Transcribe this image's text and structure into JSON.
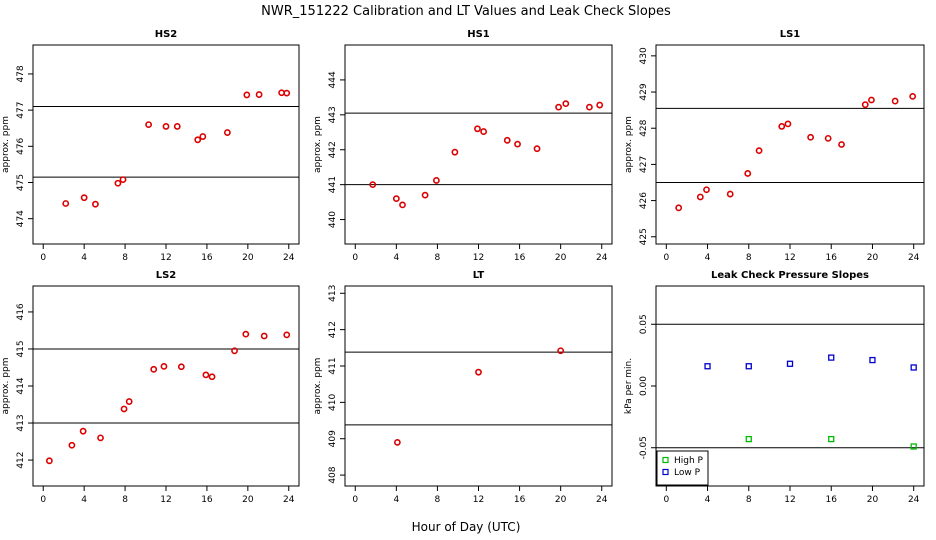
{
  "figure": {
    "title": "NWR_151222  Calibration and LT Values and Leak Check Slopes",
    "xlabel": "Hour of Day (UTC)"
  },
  "chart_data": [
    {
      "type": "scatter",
      "title": "HS2",
      "ylabel": "approx. ppm",
      "xlim": [
        -1,
        25
      ],
      "ylim": [
        473.3,
        478.8
      ],
      "xticks": [
        0,
        4,
        8,
        12,
        16,
        20,
        24
      ],
      "yticks": [
        474,
        475,
        476,
        477,
        478
      ],
      "hlines": [
        475.15,
        477.1
      ],
      "series": [
        {
          "color": "#dd0000",
          "x": [
            2.2,
            4.0,
            5.1,
            7.3,
            7.8,
            10.3,
            12.0,
            13.1,
            15.1,
            15.6,
            18.0,
            19.9,
            21.1,
            23.3,
            23.8
          ],
          "y": [
            474.42,
            474.58,
            474.4,
            474.98,
            475.08,
            476.6,
            476.55,
            476.55,
            476.18,
            476.27,
            476.38,
            477.42,
            477.43,
            477.48,
            477.47
          ]
        }
      ]
    },
    {
      "type": "scatter",
      "title": "HS1",
      "ylabel": "approx. ppm",
      "xlim": [
        -1,
        25
      ],
      "ylim": [
        439.3,
        445.0
      ],
      "xticks": [
        0,
        4,
        8,
        12,
        16,
        20,
        24
      ],
      "yticks": [
        440,
        441,
        442,
        443,
        444
      ],
      "hlines": [
        441.0,
        443.05
      ],
      "series": [
        {
          "color": "#dd0000",
          "x": [
            1.7,
            4.0,
            4.6,
            6.8,
            7.9,
            9.7,
            11.9,
            12.5,
            14.8,
            15.8,
            17.7,
            19.8,
            20.5,
            22.8,
            23.8
          ],
          "y": [
            441.0,
            440.6,
            440.42,
            440.7,
            441.12,
            441.93,
            442.6,
            442.52,
            442.27,
            442.16,
            442.03,
            443.22,
            443.32,
            443.22,
            443.28
          ]
        }
      ]
    },
    {
      "type": "scatter",
      "title": "LS1",
      "ylabel": "approx. ppm",
      "xlim": [
        -1,
        25
      ],
      "ylim": [
        424.8,
        430.3
      ],
      "xticks": [
        0,
        4,
        8,
        12,
        16,
        20,
        24
      ],
      "yticks": [
        425,
        426,
        427,
        428,
        429,
        430
      ],
      "hlines": [
        426.5,
        428.55
      ],
      "series": [
        {
          "color": "#dd0000",
          "x": [
            1.2,
            3.3,
            3.9,
            6.2,
            7.9,
            9.0,
            11.2,
            11.8,
            14.0,
            15.7,
            17.0,
            19.3,
            19.9,
            22.2,
            23.9
          ],
          "y": [
            425.8,
            426.1,
            426.3,
            426.18,
            426.75,
            427.38,
            428.05,
            428.12,
            427.75,
            427.72,
            427.55,
            428.65,
            428.78,
            428.75,
            428.88
          ]
        }
      ]
    },
    {
      "type": "scatter",
      "title": "LS2",
      "ylabel": "approx. ppm",
      "xlim": [
        -1,
        25
      ],
      "ylim": [
        411.3,
        416.7
      ],
      "xticks": [
        0,
        4,
        8,
        12,
        16,
        20,
        24
      ],
      "yticks": [
        412,
        413,
        414,
        415,
        416
      ],
      "hlines": [
        413.0,
        415.0
      ],
      "series": [
        {
          "color": "#dd0000",
          "x": [
            0.6,
            2.8,
            3.9,
            5.6,
            7.9,
            8.4,
            10.8,
            11.8,
            13.5,
            15.9,
            16.5,
            18.7,
            19.8,
            21.6,
            23.8
          ],
          "y": [
            411.98,
            412.4,
            412.78,
            412.6,
            413.38,
            413.58,
            414.45,
            414.53,
            414.52,
            414.3,
            414.25,
            414.95,
            415.4,
            415.35,
            415.38
          ]
        }
      ]
    },
    {
      "type": "scatter",
      "title": "LT",
      "ylabel": "approx. ppm",
      "xlim": [
        -1,
        25
      ],
      "ylim": [
        407.7,
        413.2
      ],
      "xticks": [
        0,
        4,
        8,
        12,
        16,
        20,
        24
      ],
      "yticks": [
        408,
        409,
        410,
        411,
        412,
        413
      ],
      "hlines": [
        409.38,
        411.38
      ],
      "series": [
        {
          "color": "#dd0000",
          "x": [
            4.1,
            12.0,
            20.0
          ],
          "y": [
            408.9,
            410.83,
            411.42
          ]
        }
      ]
    },
    {
      "type": "scatter",
      "title": "Leak Check Pressure Slopes",
      "ylabel": "kPa per min.",
      "xlim": [
        -1,
        25
      ],
      "ylim": [
        -0.081,
        0.081
      ],
      "xticks": [
        0,
        4,
        8,
        12,
        16,
        20,
        24
      ],
      "yticks": [
        -0.05,
        0.0,
        0.05
      ],
      "ytick_labels": [
        "-0.05",
        "0.00",
        "0.05"
      ],
      "hlines": [
        0.05,
        -0.05
      ],
      "legend": "bottom-left",
      "series": [
        {
          "name": "High P",
          "color": "#00bb00",
          "x": [
            8.0,
            16.0,
            24.0
          ],
          "y": [
            -0.043,
            -0.043,
            -0.049
          ]
        },
        {
          "name": "Low P",
          "color": "#0000cc",
          "x": [
            4.0,
            8.0,
            12.0,
            16.0,
            20.0,
            24.0
          ],
          "y": [
            0.016,
            0.016,
            0.018,
            0.023,
            0.021,
            0.015
          ]
        }
      ]
    }
  ]
}
